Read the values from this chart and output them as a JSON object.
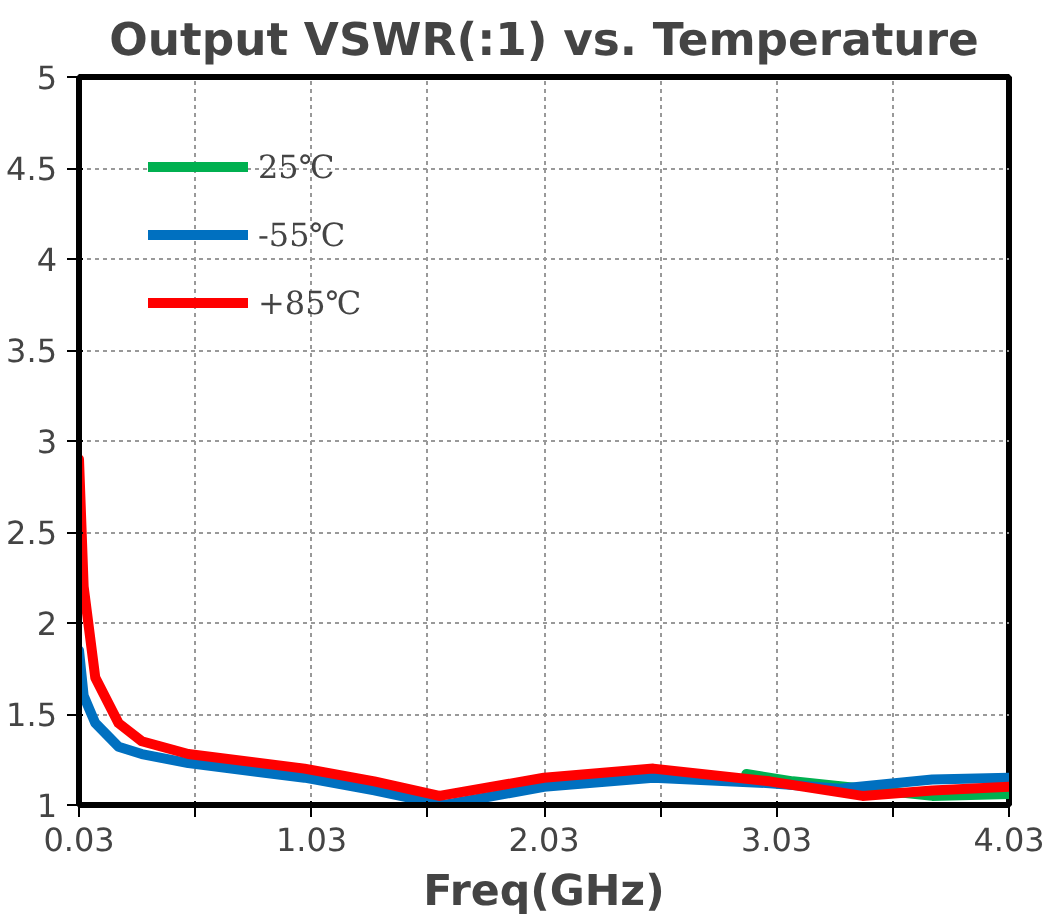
{
  "chart_data": {
    "type": "line",
    "title": "Output VSWR(:1) vs. Temperature",
    "xlabel": "Freq(GHz)",
    "xlim": [
      0.03,
      4.03
    ],
    "ylim": [
      1,
      5
    ],
    "xticks": [
      0.03,
      {
        "value": 0.53,
        "label": null
      },
      1.03,
      {
        "value": 1.53,
        "label": null
      },
      2.03,
      {
        "value": 2.53,
        "label": null
      },
      3.03,
      {
        "value": 3.53,
        "label": null
      },
      4.03
    ],
    "yticks": [
      1,
      1.5,
      2,
      2.5,
      3,
      3.5,
      4,
      4.5,
      5
    ],
    "grid": true,
    "legend": "top left",
    "series": [
      {
        "name": "25℃",
        "color": "#00b050",
        "x": [
          2.9,
          3.1,
          3.7,
          4.03
        ],
        "values": [
          1.17,
          1.13,
          1.05,
          1.06
        ]
      },
      {
        "name": "-55℃",
        "color": "#0070c0",
        "x": [
          0.03,
          0.05,
          0.1,
          0.2,
          0.3,
          0.5,
          1.0,
          1.3,
          1.6,
          2.03,
          2.5,
          3.0,
          3.3,
          3.7,
          4.03
        ],
        "values": [
          1.85,
          1.6,
          1.45,
          1.32,
          1.28,
          1.23,
          1.15,
          1.08,
          1.0,
          1.1,
          1.15,
          1.12,
          1.09,
          1.14,
          1.15
        ]
      },
      {
        "name": "+85℃",
        "color": "#ff0000",
        "x": [
          0.03,
          0.05,
          0.1,
          0.2,
          0.3,
          0.5,
          1.0,
          1.3,
          1.58,
          2.03,
          2.5,
          3.0,
          3.4,
          3.7,
          4.03
        ],
        "values": [
          2.9,
          2.2,
          1.7,
          1.45,
          1.35,
          1.28,
          1.2,
          1.13,
          1.05,
          1.15,
          1.2,
          1.13,
          1.05,
          1.08,
          1.1
        ]
      }
    ]
  }
}
